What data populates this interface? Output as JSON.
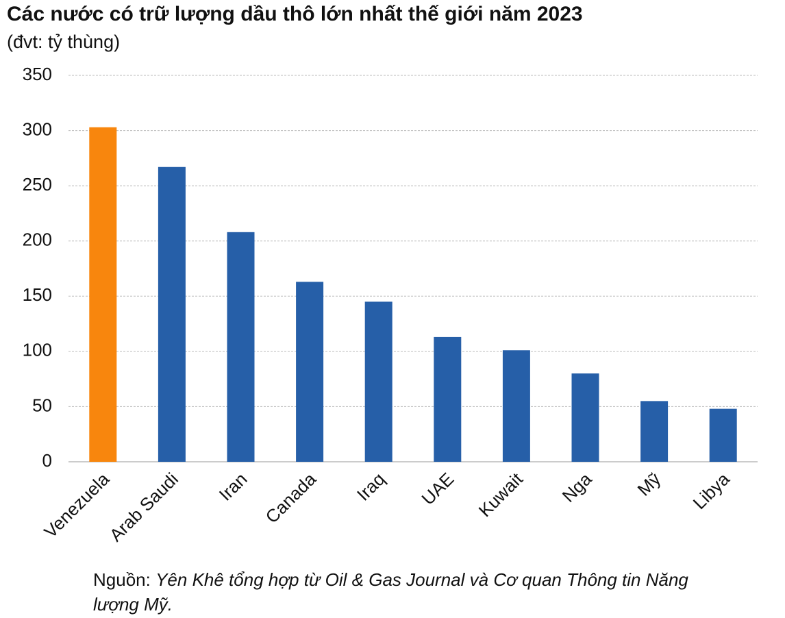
{
  "chart_data": {
    "type": "bar",
    "title": "Các nước có trữ lượng dầu thô lớn nhất thế giới năm 2023",
    "subtitle": "(đvt: tỷ thùng)",
    "categories": [
      "Venezuela",
      "Arab Saudi",
      "Iran",
      "Canada",
      "Iraq",
      "UAE",
      "Kuwait",
      "Nga",
      "Mỹ",
      "Libya"
    ],
    "values": [
      303,
      267,
      208,
      163,
      145,
      113,
      101,
      80,
      55,
      48
    ],
    "colors": [
      "#f8860d",
      "#265fa8",
      "#265fa8",
      "#265fa8",
      "#265fa8",
      "#265fa8",
      "#265fa8",
      "#265fa8",
      "#265fa8",
      "#265fa8"
    ],
    "ylim": [
      0,
      350
    ],
    "yticks": [
      0,
      50,
      100,
      150,
      200,
      250,
      300,
      350
    ],
    "grid": true,
    "source_label": "Nguồn:",
    "source": "Yên Khê tổng hợp từ Oil & Gas Journal và Cơ quan Thông tin Năng lượng Mỹ."
  }
}
